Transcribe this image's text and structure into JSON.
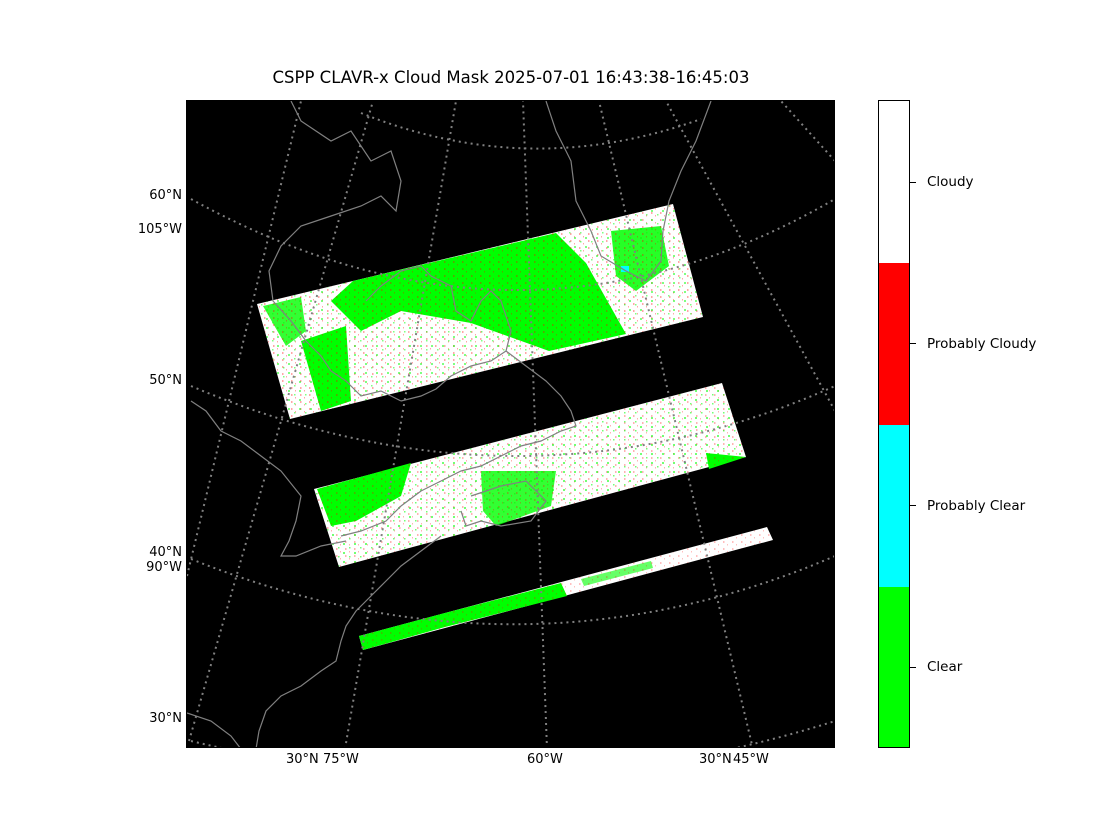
{
  "title": "CSPP CLAVR-x Cloud Mask 2025-07-01 16:43:38-16:45:03",
  "lat_labels": [
    "60°N",
    "105°W",
    "50°N",
    "40°N",
    "90°W",
    "30°N"
  ],
  "lon_labels": [
    "30°N",
    "75°W",
    "60°W",
    "30°N",
    "45°W"
  ],
  "colorbar": {
    "categories": [
      {
        "label": "Cloudy",
        "color": "#ffffff"
      },
      {
        "label": "Probably Cloudy",
        "color": "#ff0000"
      },
      {
        "label": "Probably Clear",
        "color": "#00ffff"
      },
      {
        "label": "Clear",
        "color": "#00ff00"
      }
    ]
  },
  "colors": {
    "background": "#000000",
    "coastline": "#808080",
    "graticule": "#808080"
  }
}
